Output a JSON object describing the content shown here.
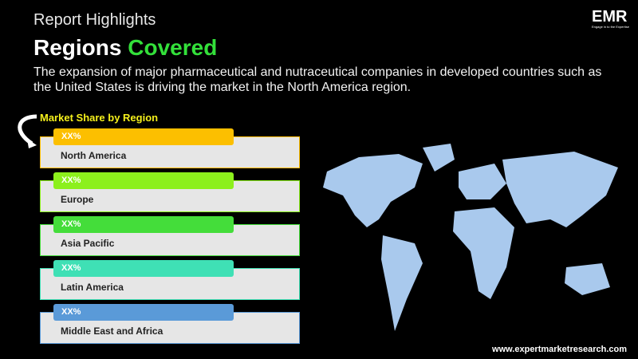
{
  "header": {
    "kicker": "Report Highlights",
    "title_white": "Regions",
    "title_green": "Covered",
    "description": "The expansion of major pharmaceutical and nutraceutical companies in developed countries such as the United States is driving the market in the North America region."
  },
  "logo": {
    "text": "EMR",
    "tagline": "Engage in to the Expertise"
  },
  "section_label": "Market Share by Region",
  "regions": [
    {
      "name": "North America",
      "value": "XX%",
      "color": "#fcbf00"
    },
    {
      "name": "Europe",
      "value": "XX%",
      "color": "#8cf01c"
    },
    {
      "name": "Asia Pacific",
      "value": "XX%",
      "color": "#44dd3a"
    },
    {
      "name": "Latin America",
      "value": "XX%",
      "color": "#3fe0b5"
    },
    {
      "name": "Middle East and Africa",
      "value": "XX%",
      "color": "#5a9ad8"
    }
  ],
  "map_color": "#a9c9ed",
  "footer_url": "www.expertmarketresearch.com"
}
